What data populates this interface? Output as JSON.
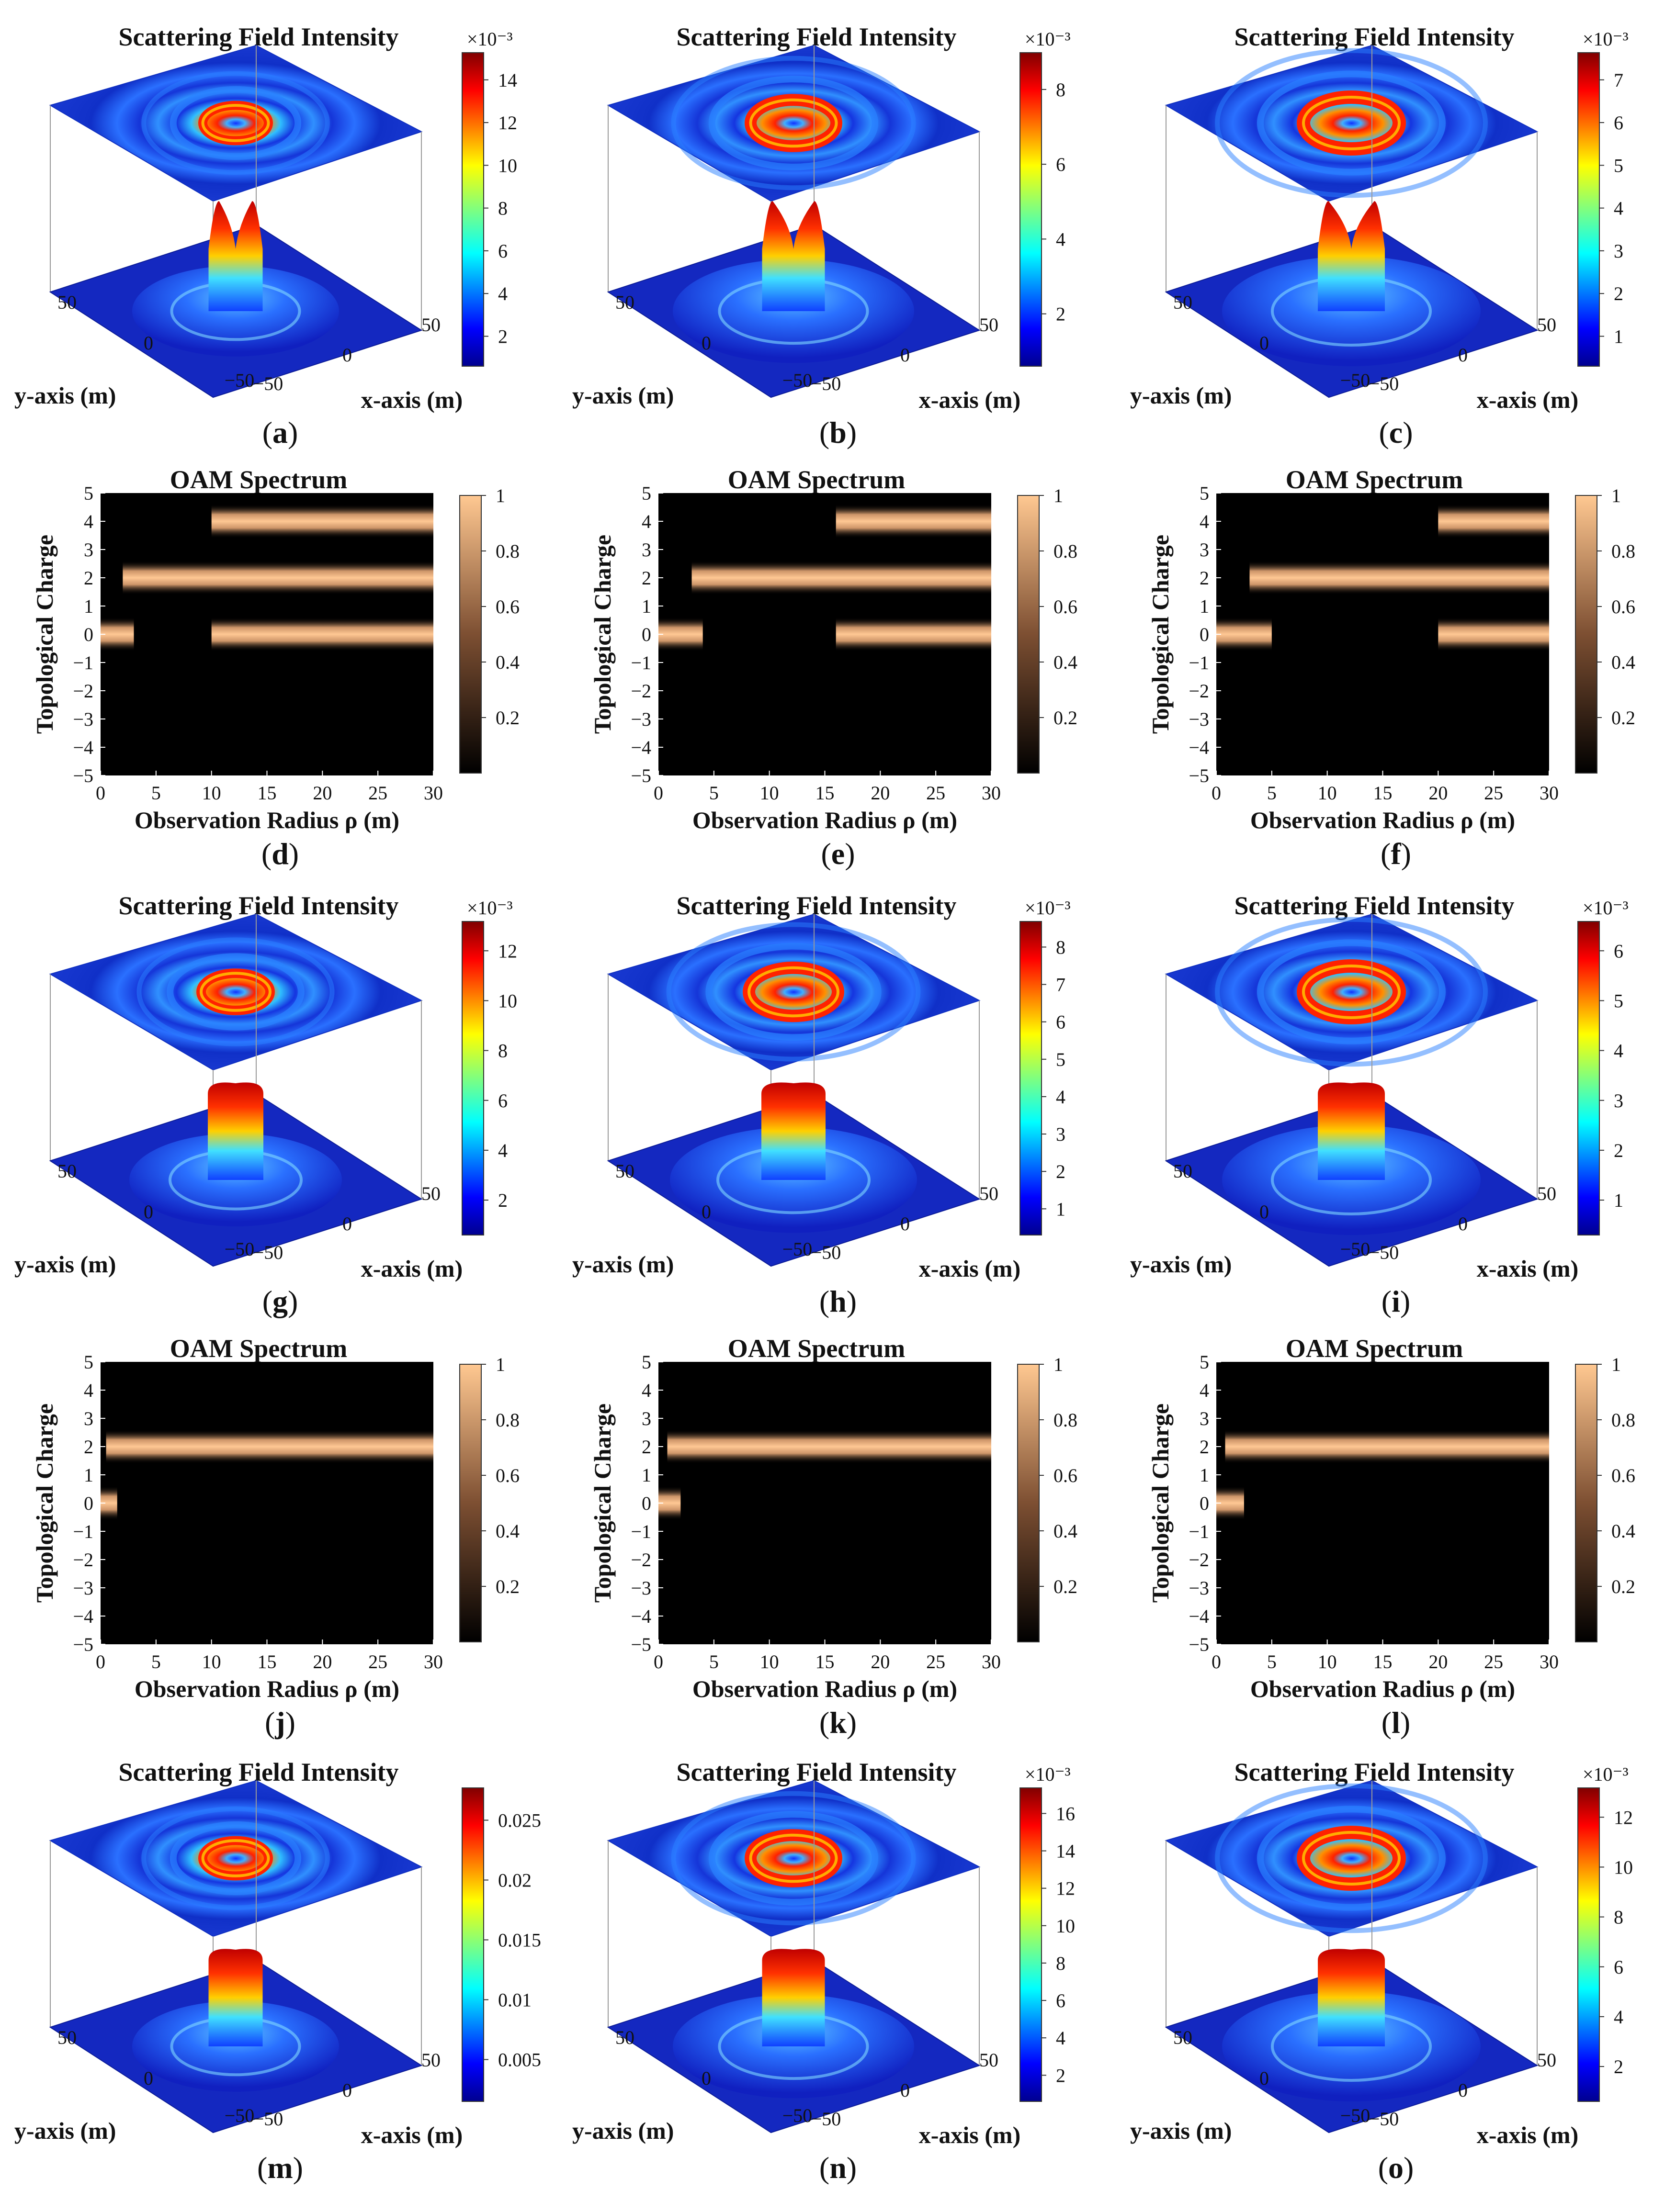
{
  "colors": {
    "jet_low": "#0a1aa8",
    "jet_high": "#b00000",
    "copper_high": "#f4b98a",
    "copper_low": "#000000"
  },
  "chart_data": [
    {
      "panel": "a",
      "type": "surface3d",
      "title": "Scattering Field Intensity",
      "xlabel": "x-axis (m)",
      "ylabel": "y-axis (m)",
      "x_ticks": [
        "−50",
        "0",
        "50"
      ],
      "y_ticks": [
        "50",
        "0",
        "−50"
      ],
      "colorbar": {
        "exponent": "×10⁻³",
        "ticks": [
          "2",
          "4",
          "6",
          "8",
          "10",
          "12",
          "14"
        ]
      },
      "ring_scale": 0.55,
      "peak_level": "2 peaks",
      "label": "(a)",
      "label_letter": "a"
    },
    {
      "panel": "b",
      "type": "surface3d",
      "title": "Scattering Field Intensity",
      "xlabel": "x-axis (m)",
      "ylabel": "y-axis (m)",
      "x_ticks": [
        "−50",
        "0",
        "50"
      ],
      "y_ticks": [
        "50",
        "0",
        "−50"
      ],
      "colorbar": {
        "exponent": "×10⁻³",
        "ticks": [
          "2",
          "4",
          "6",
          "8"
        ]
      },
      "ring_scale": 0.85,
      "peak_level": "2 peaks",
      "label": "(b)",
      "label_letter": "b"
    },
    {
      "panel": "c",
      "type": "surface3d",
      "title": "Scattering Field Intensity",
      "xlabel": "x-axis (m)",
      "ylabel": "y-axis (m)",
      "x_ticks": [
        "−50",
        "0",
        "50"
      ],
      "y_ticks": [
        "50",
        "0",
        "−50"
      ],
      "colorbar": {
        "exponent": "×10⁻³",
        "ticks": [
          "1",
          "2",
          "3",
          "4",
          "5",
          "6",
          "7"
        ]
      },
      "ring_scale": 1.0,
      "peak_level": "2 peaks",
      "label": "(c)",
      "label_letter": "c"
    },
    {
      "panel": "d",
      "type": "heatmap",
      "title": "OAM Spectrum",
      "xlabel": "Observation Radius ρ (m)",
      "ylabel": "Topological Charge",
      "x_ticks": [
        "0",
        "5",
        "10",
        "15",
        "20",
        "25",
        "30"
      ],
      "y_ticks": [
        "5",
        "4",
        "3",
        "2",
        "1",
        "0",
        "−1",
        "−2",
        "−3",
        "−4",
        "−5"
      ],
      "xlim": [
        0,
        30
      ],
      "ylim": [
        -5,
        5
      ],
      "colorbar": {
        "ticks": [
          "0.2",
          "0.4",
          "0.6",
          "0.8",
          "1"
        ]
      },
      "bands": [
        {
          "charge": 4,
          "from": 10,
          "to": 30
        },
        {
          "charge": 2,
          "from": 2,
          "to": 30
        },
        {
          "charge": 0,
          "from": 0,
          "to": 3
        },
        {
          "charge": 0,
          "from": 10,
          "to": 30
        }
      ],
      "label": "(d)",
      "label_letter": "d"
    },
    {
      "panel": "e",
      "type": "heatmap",
      "title": "OAM Spectrum",
      "xlabel": "Observation Radius ρ (m)",
      "ylabel": "Topological Charge",
      "x_ticks": [
        "0",
        "5",
        "10",
        "15",
        "20",
        "25",
        "30"
      ],
      "y_ticks": [
        "5",
        "4",
        "3",
        "2",
        "1",
        "0",
        "−1",
        "−2",
        "−3",
        "−4",
        "−5"
      ],
      "xlim": [
        0,
        30
      ],
      "ylim": [
        -5,
        5
      ],
      "colorbar": {
        "ticks": [
          "0.2",
          "0.4",
          "0.6",
          "0.8",
          "1"
        ]
      },
      "bands": [
        {
          "charge": 4,
          "from": 16,
          "to": 30
        },
        {
          "charge": 2,
          "from": 3,
          "to": 30
        },
        {
          "charge": 0,
          "from": 0,
          "to": 4
        },
        {
          "charge": 0,
          "from": 16,
          "to": 30
        }
      ],
      "label": "(e)",
      "label_letter": "e"
    },
    {
      "panel": "f",
      "type": "heatmap",
      "title": "OAM Spectrum",
      "xlabel": "Observation Radius ρ (m)",
      "ylabel": "Topological Charge",
      "x_ticks": [
        "0",
        "5",
        "10",
        "15",
        "20",
        "25",
        "30"
      ],
      "y_ticks": [
        "5",
        "4",
        "3",
        "2",
        "1",
        "0",
        "−1",
        "−2",
        "−3",
        "−4",
        "−5"
      ],
      "xlim": [
        0,
        30
      ],
      "ylim": [
        -5,
        5
      ],
      "colorbar": {
        "ticks": [
          "0.2",
          "0.4",
          "0.6",
          "0.8",
          "1"
        ]
      },
      "bands": [
        {
          "charge": 4,
          "from": 20,
          "to": 30
        },
        {
          "charge": 2,
          "from": 3,
          "to": 30
        },
        {
          "charge": 0,
          "from": 0,
          "to": 5
        },
        {
          "charge": 0,
          "from": 20,
          "to": 30
        }
      ],
      "label": "(f)",
      "label_letter": "f"
    },
    {
      "panel": "g",
      "type": "surface3d",
      "title": "Scattering Field Intensity",
      "xlabel": "x-axis (m)",
      "ylabel": "y-axis (m)",
      "x_ticks": [
        "−50",
        "0",
        "50"
      ],
      "y_ticks": [
        "50",
        "0",
        "−50"
      ],
      "colorbar": {
        "exponent": "×10⁻³",
        "ticks": [
          "2",
          "4",
          "6",
          "8",
          "10",
          "12"
        ]
      },
      "ring_scale": 0.6,
      "peak_level": "flat top",
      "label": "(g)",
      "label_letter": "g"
    },
    {
      "panel": "h",
      "type": "surface3d",
      "title": "Scattering Field Intensity",
      "xlabel": "x-axis (m)",
      "ylabel": "y-axis (m)",
      "x_ticks": [
        "−50",
        "0",
        "50"
      ],
      "y_ticks": [
        "50",
        "0",
        "−50"
      ],
      "colorbar": {
        "exponent": "×10⁻³",
        "ticks": [
          "1",
          "2",
          "3",
          "4",
          "5",
          "6",
          "7",
          "8"
        ]
      },
      "ring_scale": 0.9,
      "peak_level": "flat top",
      "label": "(h)",
      "label_letter": "h"
    },
    {
      "panel": "i",
      "type": "surface3d",
      "title": "Scattering Field Intensity",
      "xlabel": "x-axis (m)",
      "ylabel": "y-axis (m)",
      "x_ticks": [
        "−50",
        "0",
        "50"
      ],
      "y_ticks": [
        "50",
        "0",
        "−50"
      ],
      "colorbar": {
        "exponent": "×10⁻³",
        "ticks": [
          "1",
          "2",
          "3",
          "4",
          "5",
          "6"
        ]
      },
      "ring_scale": 1.0,
      "peak_level": "flat top",
      "label": "(i)",
      "label_letter": "i"
    },
    {
      "panel": "j",
      "type": "heatmap",
      "title": "OAM Spectrum",
      "xlabel": "Observation Radius ρ (m)",
      "ylabel": "Topological Charge",
      "x_ticks": [
        "0",
        "5",
        "10",
        "15",
        "20",
        "25",
        "30"
      ],
      "y_ticks": [
        "5",
        "4",
        "3",
        "2",
        "1",
        "0",
        "−1",
        "−2",
        "−3",
        "−4",
        "−5"
      ],
      "xlim": [
        0,
        30
      ],
      "ylim": [
        -5,
        5
      ],
      "colorbar": {
        "ticks": [
          "0.2",
          "0.4",
          "0.6",
          "0.8",
          "1"
        ]
      },
      "bands": [
        {
          "charge": 2,
          "from": 0.5,
          "to": 30
        },
        {
          "charge": 0,
          "from": 0,
          "to": 1.5
        }
      ],
      "label": "(j)",
      "label_letter": "j"
    },
    {
      "panel": "k",
      "type": "heatmap",
      "title": "OAM Spectrum",
      "xlabel": "Observation Radius ρ (m)",
      "ylabel": "Topological Charge",
      "x_ticks": [
        "0",
        "5",
        "10",
        "15",
        "20",
        "25",
        "30"
      ],
      "y_ticks": [
        "5",
        "4",
        "3",
        "2",
        "1",
        "0",
        "−1",
        "−2",
        "−3",
        "−4",
        "−5"
      ],
      "xlim": [
        0,
        30
      ],
      "ylim": [
        -5,
        5
      ],
      "colorbar": {
        "ticks": [
          "0.2",
          "0.4",
          "0.6",
          "0.8",
          "1"
        ]
      },
      "bands": [
        {
          "charge": 2,
          "from": 0.8,
          "to": 30
        },
        {
          "charge": 0,
          "from": 0,
          "to": 2
        }
      ],
      "label": "(k)",
      "label_letter": "k"
    },
    {
      "panel": "l",
      "type": "heatmap",
      "title": "OAM Spectrum",
      "xlabel": "Observation Radius ρ (m)",
      "ylabel": "Topological Charge",
      "x_ticks": [
        "0",
        "5",
        "10",
        "15",
        "20",
        "25",
        "30"
      ],
      "y_ticks": [
        "5",
        "4",
        "3",
        "2",
        "1",
        "0",
        "−1",
        "−2",
        "−3",
        "−4",
        "−5"
      ],
      "xlim": [
        0,
        30
      ],
      "ylim": [
        -5,
        5
      ],
      "colorbar": {
        "ticks": [
          "0.2",
          "0.4",
          "0.6",
          "0.8",
          "1"
        ]
      },
      "bands": [
        {
          "charge": 2,
          "from": 0.8,
          "to": 30
        },
        {
          "charge": 0,
          "from": 0,
          "to": 2.5
        }
      ],
      "label": "(l)",
      "label_letter": "l"
    },
    {
      "panel": "m",
      "type": "surface3d",
      "title": "Scattering Field Intensity",
      "xlabel": "x-axis (m)",
      "ylabel": "y-axis (m)",
      "x_ticks": [
        "−50",
        "0",
        "50"
      ],
      "y_ticks": [
        "50",
        "0",
        "−50"
      ],
      "colorbar": {
        "exponent": "",
        "ticks": [
          "0.005",
          "0.01",
          "0.015",
          "0.02",
          "0.025"
        ]
      },
      "ring_scale": 0.55,
      "peak_level": "flat top",
      "label": "(m)",
      "label_letter": "m"
    },
    {
      "panel": "n",
      "type": "surface3d",
      "title": "Scattering Field Intensity",
      "xlabel": "x-axis (m)",
      "ylabel": "y-axis (m)",
      "x_ticks": [
        "−50",
        "0",
        "50"
      ],
      "y_ticks": [
        "50",
        "0",
        "−50"
      ],
      "colorbar": {
        "exponent": "×10⁻³",
        "ticks": [
          "2",
          "4",
          "6",
          "8",
          "10",
          "12",
          "14",
          "16"
        ]
      },
      "ring_scale": 0.85,
      "peak_level": "flat top",
      "label": "(n)",
      "label_letter": "n"
    },
    {
      "panel": "o",
      "type": "surface3d",
      "title": "Scattering Field Intensity",
      "xlabel": "x-axis (m)",
      "ylabel": "y-axis (m)",
      "x_ticks": [
        "−50",
        "0",
        "50"
      ],
      "y_ticks": [
        "50",
        "0",
        "−50"
      ],
      "colorbar": {
        "exponent": "×10⁻³",
        "ticks": [
          "2",
          "4",
          "6",
          "8",
          "10",
          "12"
        ]
      },
      "ring_scale": 1.0,
      "peak_level": "flat top",
      "label": "(o)",
      "label_letter": "o"
    }
  ]
}
